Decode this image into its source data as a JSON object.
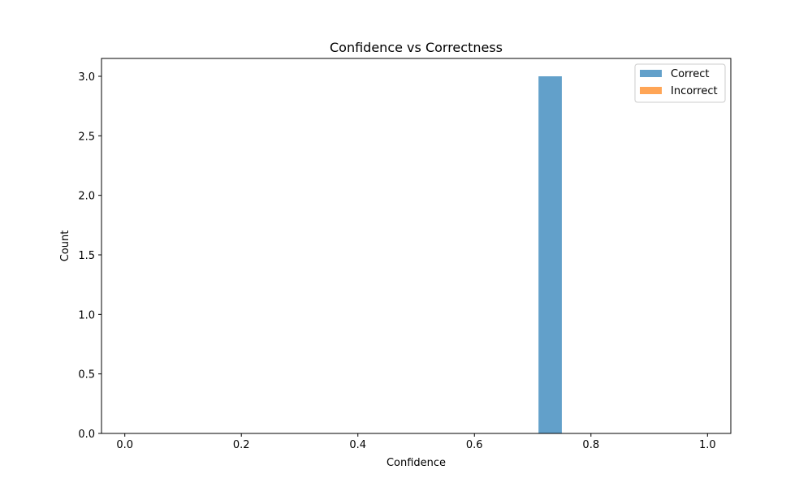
{
  "chart_data": {
    "type": "bar",
    "title": "Confidence vs Correctness",
    "xlabel": "Confidence",
    "ylabel": "Count",
    "xlim": [
      -0.04,
      1.04
    ],
    "ylim": [
      0,
      3.15
    ],
    "xticks": [
      0.0,
      0.2,
      0.4,
      0.6,
      0.8,
      1.0
    ],
    "xtick_labels": [
      "0.0",
      "0.2",
      "0.4",
      "0.6",
      "0.8",
      "1.0"
    ],
    "yticks": [
      0.0,
      0.5,
      1.0,
      1.5,
      2.0,
      2.5,
      3.0
    ],
    "ytick_labels": [
      "0.0",
      "0.5",
      "1.0",
      "1.5",
      "2.0",
      "2.5",
      "3.0"
    ],
    "grid": false,
    "legend_position": "top-right",
    "series": [
      {
        "name": "Correct",
        "color": "#1f77b4",
        "opacity": 0.7,
        "bins": [
          {
            "x0": 0.71,
            "x1": 0.75,
            "value": 3
          }
        ]
      },
      {
        "name": "Incorrect",
        "color": "#ff7f0e",
        "opacity": 0.7,
        "bins": []
      }
    ]
  }
}
